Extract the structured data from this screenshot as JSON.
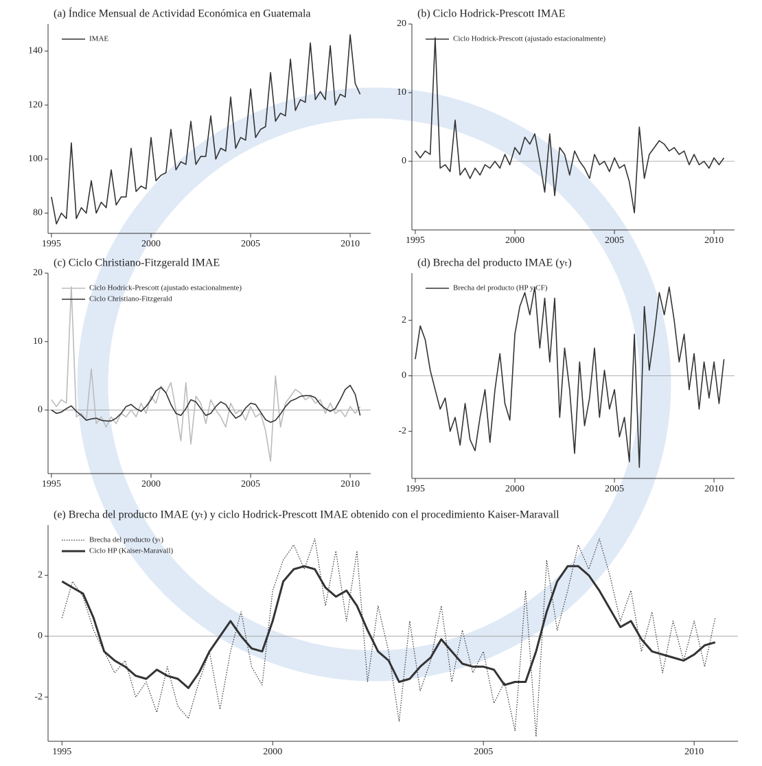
{
  "chart_data": [
    {
      "type": "line",
      "title": "(a) Índice Mensual de Actividad Económica en Guatemala",
      "x": [
        1995,
        1995.25,
        1995.5,
        1995.75,
        1996,
        1996.25,
        1996.5,
        1996.75,
        1997,
        1997.25,
        1997.5,
        1997.75,
        1998,
        1998.25,
        1998.5,
        1998.75,
        1999,
        1999.25,
        1999.5,
        1999.75,
        2000,
        2000.25,
        2000.5,
        2000.75,
        2001,
        2001.25,
        2001.5,
        2001.75,
        2002,
        2002.25,
        2002.5,
        2002.75,
        2003,
        2003.25,
        2003.5,
        2003.75,
        2004,
        2004.25,
        2004.5,
        2004.75,
        2005,
        2005.25,
        2005.5,
        2005.75,
        2006,
        2006.25,
        2006.5,
        2006.75,
        2007,
        2007.25,
        2007.5,
        2007.75,
        2008,
        2008.25,
        2008.5,
        2008.75,
        2009,
        2009.25,
        2009.5,
        2009.75,
        2010,
        2010.25,
        2010.5
      ],
      "series": [
        {
          "name": "IMAE",
          "color": "#333333",
          "values": [
            86,
            76,
            80,
            78,
            106,
            78,
            82,
            80,
            92,
            80,
            84,
            82,
            96,
            83,
            86,
            86,
            104,
            88,
            90,
            89,
            108,
            92,
            94,
            95,
            111,
            96,
            99,
            98,
            114,
            98,
            101,
            101,
            116,
            100,
            104,
            103,
            123,
            104,
            108,
            107,
            126,
            108,
            111,
            112,
            132,
            114,
            117,
            116,
            137,
            118,
            122,
            121,
            143,
            122,
            125,
            122,
            142,
            120,
            124,
            123,
            146,
            128,
            124
          ]
        }
      ],
      "xlim": [
        1994.83,
        2011.03
      ],
      "xticks": [
        1995,
        2000,
        2005,
        2010
      ],
      "ylim": [
        72.5,
        150
      ],
      "yticks": [
        80,
        100,
        120,
        140
      ],
      "zero_line": false
    },
    {
      "type": "line",
      "title": "(b) Ciclo Hodrick-Prescott IMAE",
      "x": [
        1995,
        1995.25,
        1995.5,
        1995.75,
        1996,
        1996.25,
        1996.5,
        1996.75,
        1997,
        1997.25,
        1997.5,
        1997.75,
        1998,
        1998.25,
        1998.5,
        1998.75,
        1999,
        1999.25,
        1999.5,
        1999.75,
        2000,
        2000.25,
        2000.5,
        2000.75,
        2001,
        2001.25,
        2001.5,
        2001.75,
        2002,
        2002.25,
        2002.5,
        2002.75,
        2003,
        2003.25,
        2003.5,
        2003.75,
        2004,
        2004.25,
        2004.5,
        2004.75,
        2005,
        2005.25,
        2005.5,
        2005.75,
        2006,
        2006.25,
        2006.5,
        2006.75,
        2007,
        2007.25,
        2007.5,
        2007.75,
        2008,
        2008.25,
        2008.5,
        2008.75,
        2009,
        2009.25,
        2009.5,
        2009.75,
        2010,
        2010.25,
        2010.5
      ],
      "series": [
        {
          "name": "Ciclo Hodrick-Prescott (ajustado estacionalmente)",
          "color": "#333333",
          "values": [
            1.5,
            0.5,
            1.5,
            1,
            18,
            -1,
            -0.5,
            -1.5,
            6,
            -2,
            -1,
            -2.5,
            -1,
            -2,
            -0.5,
            -1,
            0,
            -1,
            1,
            -0.5,
            2,
            1,
            3.5,
            2.5,
            4,
            0,
            -4.5,
            4,
            -5,
            2,
            1,
            -2,
            1.5,
            0,
            -1,
            -2.5,
            1,
            -0.5,
            0,
            -1.5,
            0.5,
            -1,
            -0.5,
            -3,
            -7.5,
            5,
            -2.5,
            1,
            2,
            3,
            2.5,
            1.5,
            2,
            1,
            1.5,
            -0.5,
            1,
            -0.5,
            0,
            -1,
            0.5,
            -0.5,
            0.5
          ]
        }
      ],
      "xlim": [
        1994.83,
        2011.03
      ],
      "xticks": [
        1995,
        2000,
        2005,
        2010
      ],
      "ylim": [
        -10,
        20
      ],
      "yticks": [
        0,
        10,
        20
      ],
      "zero_line": true
    },
    {
      "type": "line",
      "title": "(c) Ciclo Christiano-Fitzgerald IMAE",
      "x": [
        1995,
        1995.25,
        1995.5,
        1995.75,
        1996,
        1996.25,
        1996.5,
        1996.75,
        1997,
        1997.25,
        1997.5,
        1997.75,
        1998,
        1998.25,
        1998.5,
        1998.75,
        1999,
        1999.25,
        1999.5,
        1999.75,
        2000,
        2000.25,
        2000.5,
        2000.75,
        2001,
        2001.25,
        2001.5,
        2001.75,
        2002,
        2002.25,
        2002.5,
        2002.75,
        2003,
        2003.25,
        2003.5,
        2003.75,
        2004,
        2004.25,
        2004.5,
        2004.75,
        2005,
        2005.25,
        2005.5,
        2005.75,
        2006,
        2006.25,
        2006.5,
        2006.75,
        2007,
        2007.25,
        2007.5,
        2007.75,
        2008,
        2008.25,
        2008.5,
        2008.75,
        2009,
        2009.25,
        2009.5,
        2009.75,
        2010,
        2010.25,
        2010.5
      ],
      "series": [
        {
          "name": "Ciclo Hodrick-Prescott (ajustado estacionalmente)",
          "color": "#bbbbbb",
          "values": [
            1.5,
            0.5,
            1.5,
            1,
            18,
            -1,
            -0.5,
            -1.5,
            6,
            -2,
            -1,
            -2.5,
            -1,
            -2,
            -0.5,
            -1,
            0,
            -1,
            1,
            -0.5,
            2,
            1,
            3.5,
            2.5,
            4,
            0,
            -4.5,
            4,
            -5,
            2,
            1,
            -2,
            1.5,
            0,
            -1,
            -2.5,
            1,
            -0.5,
            0,
            -1.5,
            0.5,
            -1,
            -0.5,
            -3,
            -7.5,
            5,
            -2.5,
            1,
            2,
            3,
            2.5,
            1.5,
            2,
            1,
            1.5,
            -0.5,
            1,
            -0.5,
            0,
            -1,
            0.5,
            -0.5,
            0.5
          ]
        },
        {
          "name": "Ciclo Christiano-Fitzgerald",
          "color": "#333333",
          "values": [
            0,
            -0.5,
            -0.3,
            0.2,
            0.6,
            -0.2,
            -0.8,
            -1.5,
            -1.3,
            -1.2,
            -1.5,
            -1.6,
            -1.6,
            -1.2,
            -0.5,
            0.5,
            0.8,
            0.2,
            -0.2,
            0.5,
            1.5,
            2.8,
            3.3,
            2.5,
            0.8,
            -0.5,
            -0.8,
            0.2,
            1.5,
            1.2,
            0.2,
            -0.8,
            -0.5,
            0.5,
            1.2,
            0.8,
            -0.3,
            -1.2,
            -0.8,
            0.3,
            1,
            0.8,
            -0.3,
            -1.4,
            -1.8,
            -1.5,
            -0.6,
            0.5,
            1.3,
            1.6,
            2,
            2.1,
            2.1,
            1.8,
            0.8,
            0.2,
            -0.2,
            0.2,
            1.5,
            3,
            3.6,
            2.3,
            -0.8
          ]
        }
      ],
      "xlim": [
        1994.83,
        2011.03
      ],
      "xticks": [
        1995,
        2000,
        2005,
        2010
      ],
      "ylim": [
        -9.3,
        20
      ],
      "yticks": [
        0,
        10,
        20
      ],
      "zero_line": true
    },
    {
      "type": "line",
      "title": "(d) Brecha del producto IMAE (yₜ)",
      "x": [
        1995,
        1995.25,
        1995.5,
        1995.75,
        1996,
        1996.25,
        1996.5,
        1996.75,
        1997,
        1997.25,
        1997.5,
        1997.75,
        1998,
        1998.25,
        1998.5,
        1998.75,
        1999,
        1999.25,
        1999.5,
        1999.75,
        2000,
        2000.25,
        2000.5,
        2000.75,
        2001,
        2001.25,
        2001.5,
        2001.75,
        2002,
        2002.25,
        2002.5,
        2002.75,
        2003,
        2003.25,
        2003.5,
        2003.75,
        2004,
        2004.25,
        2004.5,
        2004.75,
        2005,
        2005.25,
        2005.5,
        2005.75,
        2006,
        2006.25,
        2006.5,
        2006.75,
        2007,
        2007.25,
        2007.5,
        2007.75,
        2008,
        2008.25,
        2008.5,
        2008.75,
        2009,
        2009.25,
        2009.5,
        2009.75,
        2010,
        2010.25,
        2010.5
      ],
      "series": [
        {
          "name": "Brecha del producto (HP y CF)",
          "color": "#333333",
          "values": [
            0.6,
            1.8,
            1.3,
            0.2,
            -0.5,
            -1.2,
            -0.8,
            -2,
            -1.5,
            -2.5,
            -1,
            -2.3,
            -2.7,
            -1.5,
            -0.5,
            -2.4,
            -0.5,
            0.8,
            -1,
            -1.6,
            1.5,
            2.5,
            3,
            2.2,
            3.2,
            1,
            2.8,
            0.5,
            2.8,
            -1.5,
            1,
            -0.5,
            -2.8,
            0.5,
            -1.8,
            -0.8,
            1,
            -1.5,
            0.2,
            -1.2,
            -0.5,
            -2.2,
            -1.5,
            -3.1,
            1.5,
            -3.3,
            2.5,
            0.2,
            1.5,
            3,
            2.2,
            3.2,
            2,
            0.5,
            1.5,
            -0.5,
            0.8,
            -1.2,
            0.5,
            -0.8,
            0.5,
            -1,
            0.6
          ]
        }
      ],
      "xlim": [
        1994.83,
        2011.03
      ],
      "xticks": [
        1995,
        2000,
        2005,
        2010
      ],
      "ylim": [
        -3.7,
        3.7
      ],
      "yticks": [
        -2,
        0,
        2
      ],
      "zero_line": true
    },
    {
      "type": "line",
      "title": "(e) Brecha del producto IMAE (yₜ) y ciclo Hodrick-Prescott IMAE obtenido con el procedimiento Kaiser-Maravall",
      "x": [
        1995,
        1995.25,
        1995.5,
        1995.75,
        1996,
        1996.25,
        1996.5,
        1996.75,
        1997,
        1997.25,
        1997.5,
        1997.75,
        1998,
        1998.25,
        1998.5,
        1998.75,
        1999,
        1999.25,
        1999.5,
        1999.75,
        2000,
        2000.25,
        2000.5,
        2000.75,
        2001,
        2001.25,
        2001.5,
        2001.75,
        2002,
        2002.25,
        2002.5,
        2002.75,
        2003,
        2003.25,
        2003.5,
        2003.75,
        2004,
        2004.25,
        2004.5,
        2004.75,
        2005,
        2005.25,
        2005.5,
        2005.75,
        2006,
        2006.25,
        2006.5,
        2006.75,
        2007,
        2007.25,
        2007.5,
        2007.75,
        2008,
        2008.25,
        2008.5,
        2008.75,
        2009,
        2009.25,
        2009.5,
        2009.75,
        2010,
        2010.25,
        2010.5
      ],
      "series": [
        {
          "name": "Brecha del producto (yₜ)",
          "color": "#333333",
          "style": "dotted",
          "width": 1.2,
          "values": [
            0.6,
            1.8,
            1.3,
            0.2,
            -0.5,
            -1.2,
            -0.8,
            -2,
            -1.5,
            -2.5,
            -1,
            -2.3,
            -2.7,
            -1.5,
            -0.5,
            -2.4,
            -0.5,
            0.8,
            -1,
            -1.6,
            1.5,
            2.5,
            3,
            2.2,
            3.2,
            1,
            2.8,
            0.5,
            2.8,
            -1.5,
            1,
            -0.5,
            -2.8,
            0.5,
            -1.8,
            -0.8,
            1,
            -1.5,
            0.2,
            -1.2,
            -0.5,
            -2.2,
            -1.5,
            -3.1,
            1.5,
            -3.3,
            2.5,
            0.2,
            1.5,
            3,
            2.2,
            3.2,
            2,
            0.5,
            1.5,
            -0.5,
            0.8,
            -1.2,
            0.5,
            -0.8,
            0.5,
            -1,
            0.6
          ]
        },
        {
          "name": "Ciclo HP (Kaiser-Maravall)",
          "color": "#333333",
          "width": 3,
          "values": [
            1.8,
            1.6,
            1.4,
            0.6,
            -0.5,
            -0.8,
            -1,
            -1.3,
            -1.4,
            -1.1,
            -1.3,
            -1.4,
            -1.7,
            -1.2,
            -0.5,
            0,
            0.5,
            0,
            -0.4,
            -0.5,
            0.5,
            1.8,
            2.2,
            2.3,
            2.2,
            1.6,
            1.3,
            1.5,
            1,
            0.2,
            -0.5,
            -0.8,
            -1.5,
            -1.4,
            -1,
            -0.7,
            -0.1,
            -0.5,
            -0.9,
            -1,
            -1,
            -1.1,
            -1.6,
            -1.5,
            -1.5,
            -0.5,
            0.8,
            1.8,
            2.3,
            2.3,
            2,
            1.5,
            0.9,
            0.3,
            0.5,
            -0.1,
            -0.5,
            -0.6,
            -0.7,
            -0.8,
            -0.6,
            -0.3,
            -0.2
          ]
        }
      ],
      "xlim": [
        1994.67,
        2011.04
      ],
      "xticks": [
        1995,
        2000,
        2005,
        2010
      ],
      "ylim": [
        -3.45,
        3.65
      ],
      "yticks": [
        -2,
        0,
        2
      ],
      "zero_line": true
    }
  ]
}
